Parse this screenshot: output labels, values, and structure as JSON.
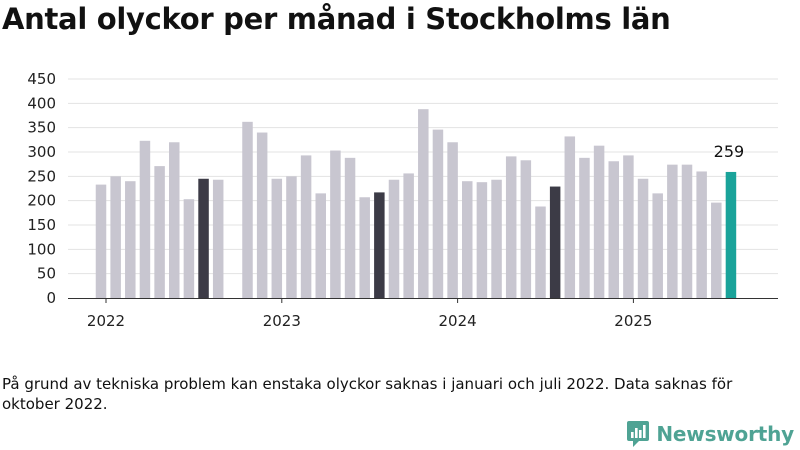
{
  "chart_data": {
    "type": "bar",
    "title": "Antal olyckor per månad i Stockholms län",
    "xlabel": "",
    "ylabel": "",
    "ylim": [
      0,
      450
    ],
    "yticks": [
      "0",
      "50",
      "100",
      "150",
      "200",
      "250",
      "300",
      "350",
      "400",
      "450"
    ],
    "xticks": [
      "2022",
      "2023",
      "2024",
      "2025"
    ],
    "grid": true,
    "legend": "none",
    "colors": {
      "default": "#c8c6d0",
      "august": "#3c3b46",
      "latest": "#1aa39a"
    },
    "categories": [
      "2022-01",
      "2022-02",
      "2022-03",
      "2022-04",
      "2022-05",
      "2022-06",
      "2022-07",
      "2022-08",
      "2022-09",
      "2022-10",
      "2022-11",
      "2022-12",
      "2023-01",
      "2023-02",
      "2023-03",
      "2023-04",
      "2023-05",
      "2023-06",
      "2023-07",
      "2023-08",
      "2023-09",
      "2023-10",
      "2023-11",
      "2023-12",
      "2024-01",
      "2024-02",
      "2024-03",
      "2024-04",
      "2024-05",
      "2024-06",
      "2024-07",
      "2024-08",
      "2024-09",
      "2024-10",
      "2024-11",
      "2024-12",
      "2025-01",
      "2025-02",
      "2025-03",
      "2025-04",
      "2025-05",
      "2025-06",
      "2025-07",
      "2025-08"
    ],
    "values": [
      233,
      250,
      240,
      323,
      271,
      320,
      203,
      245,
      243,
      null,
      362,
      340,
      245,
      250,
      293,
      215,
      303,
      288,
      207,
      217,
      243,
      256,
      388,
      346,
      320,
      240,
      238,
      243,
      291,
      283,
      188,
      229,
      332,
      288,
      313,
      281,
      293,
      245,
      215,
      274,
      274,
      260,
      196,
      259
    ],
    "highlight": [
      "default",
      "default",
      "default",
      "default",
      "default",
      "default",
      "default",
      "august",
      "default",
      "default",
      "default",
      "default",
      "default",
      "default",
      "default",
      "default",
      "default",
      "default",
      "default",
      "august",
      "default",
      "default",
      "default",
      "default",
      "default",
      "default",
      "default",
      "default",
      "default",
      "default",
      "default",
      "august",
      "default",
      "default",
      "default",
      "default",
      "default",
      "default",
      "default",
      "default",
      "default",
      "default",
      "default",
      "latest"
    ],
    "annotations": [
      {
        "category": "2025-08",
        "text": "259"
      }
    ]
  },
  "footnote": "På grund av tekniska problem kan enstaka olyckor saknas i januari och juli 2022. Data saknas för oktober 2022.",
  "brand": {
    "name": "Newsworthy",
    "icon": "newsworthy-logo-icon",
    "color": "#4fa394"
  }
}
